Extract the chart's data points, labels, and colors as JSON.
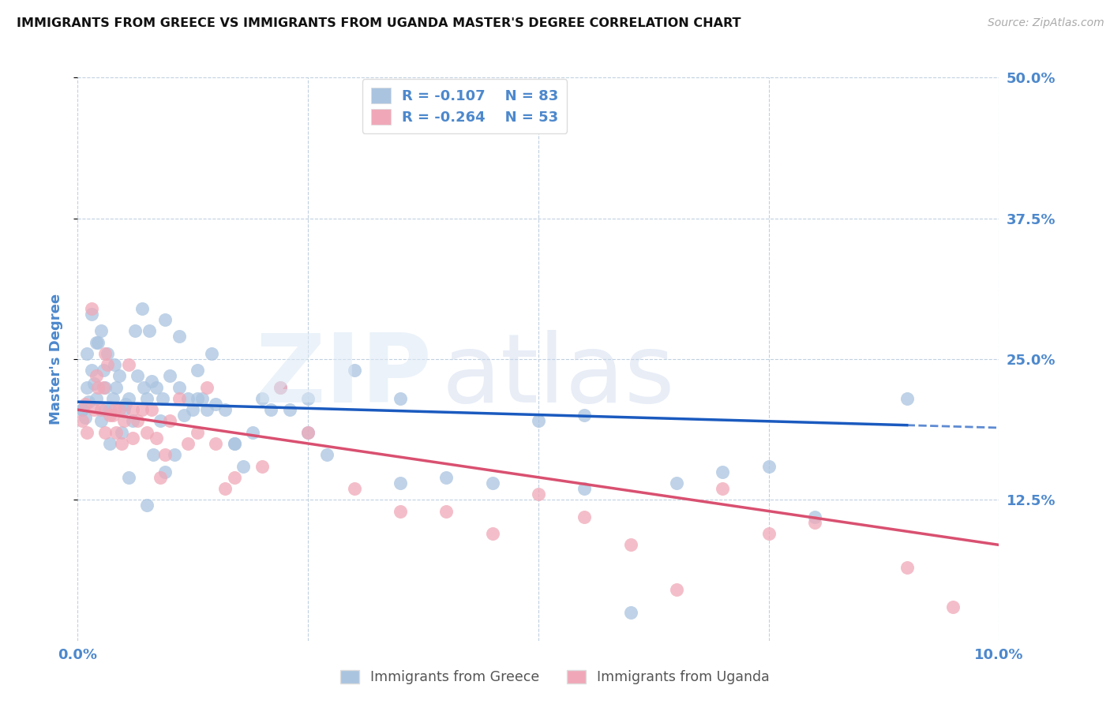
{
  "title": "IMMIGRANTS FROM GREECE VS IMMIGRANTS FROM UGANDA MASTER'S DEGREE CORRELATION CHART",
  "source": "Source: ZipAtlas.com",
  "ylabel": "Master's Degree",
  "xlim": [
    0.0,
    10.0
  ],
  "ylim": [
    0.0,
    50.0
  ],
  "ytick_values": [
    12.5,
    25.0,
    37.5,
    50.0
  ],
  "legend_labels": [
    "Immigrants from Greece",
    "Immigrants from Uganda"
  ],
  "legend_R": [
    "-0.107",
    "-0.264"
  ],
  "legend_N": [
    "83",
    "53"
  ],
  "greece_color": "#aac4e0",
  "uganda_color": "#f0a8b8",
  "greece_line_color": "#1a5abf",
  "uganda_line_color": "#d95070",
  "axis_label_color": "#4d88cc",
  "tick_label_color": "#4d88cc",
  "greece_line_x0": 0.0,
  "greece_line_y0": 21.2,
  "greece_line_x1": 10.0,
  "greece_line_y1": 18.9,
  "greece_solid_end_x": 9.0,
  "uganda_line_x0": 0.0,
  "uganda_line_y0": 20.5,
  "uganda_line_x1": 10.0,
  "uganda_line_y1": 8.5,
  "greece_scatter_x": [
    0.05,
    0.08,
    0.1,
    0.12,
    0.15,
    0.18,
    0.2,
    0.22,
    0.25,
    0.28,
    0.3,
    0.32,
    0.35,
    0.38,
    0.4,
    0.42,
    0.45,
    0.48,
    0.5,
    0.52,
    0.55,
    0.6,
    0.62,
    0.65,
    0.7,
    0.72,
    0.75,
    0.78,
    0.8,
    0.82,
    0.85,
    0.9,
    0.92,
    0.95,
    1.0,
    1.05,
    1.1,
    1.15,
    1.2,
    1.25,
    1.3,
    1.35,
    1.4,
    1.45,
    1.5,
    1.6,
    1.7,
    1.8,
    1.9,
    2.0,
    2.1,
    2.2,
    2.3,
    2.5,
    2.7,
    3.0,
    3.5,
    4.0,
    4.5,
    5.0,
    5.5,
    6.0,
    6.5,
    7.0,
    8.0,
    9.0,
    0.15,
    0.25,
    0.35,
    0.55,
    0.75,
    0.95,
    1.1,
    1.3,
    1.7,
    2.5,
    3.5,
    5.5,
    7.5,
    0.05,
    0.1,
    0.2,
    0.3
  ],
  "greece_scatter_y": [
    20.5,
    19.8,
    22.5,
    21.2,
    24.0,
    22.8,
    21.5,
    26.5,
    27.5,
    24.0,
    22.5,
    25.5,
    20.5,
    21.5,
    24.5,
    22.5,
    23.5,
    18.5,
    20.5,
    21.0,
    21.5,
    19.5,
    27.5,
    23.5,
    29.5,
    22.5,
    21.5,
    27.5,
    23.0,
    16.5,
    22.5,
    19.5,
    21.5,
    28.5,
    23.5,
    16.5,
    22.5,
    20.0,
    21.5,
    20.5,
    21.5,
    21.5,
    20.5,
    25.5,
    21.0,
    20.5,
    17.5,
    15.5,
    18.5,
    21.5,
    20.5,
    22.5,
    20.5,
    21.5,
    16.5,
    24.0,
    21.5,
    14.5,
    14.0,
    19.5,
    13.5,
    2.5,
    14.0,
    15.0,
    11.0,
    21.5,
    29.0,
    19.5,
    17.5,
    14.5,
    12.0,
    15.0,
    27.0,
    24.0,
    17.5,
    18.5,
    14.0,
    20.0,
    15.5,
    20.5,
    25.5,
    26.5,
    20.5
  ],
  "uganda_scatter_x": [
    0.05,
    0.08,
    0.1,
    0.15,
    0.18,
    0.2,
    0.22,
    0.25,
    0.28,
    0.3,
    0.32,
    0.35,
    0.38,
    0.4,
    0.42,
    0.45,
    0.48,
    0.5,
    0.55,
    0.6,
    0.65,
    0.7,
    0.75,
    0.8,
    0.85,
    0.9,
    0.95,
    1.0,
    1.1,
    1.2,
    1.3,
    1.4,
    1.5,
    1.6,
    1.7,
    2.0,
    2.2,
    2.5,
    3.0,
    3.5,
    4.0,
    4.5,
    5.0,
    5.5,
    6.0,
    6.5,
    7.0,
    7.5,
    8.0,
    9.0,
    9.5,
    0.3,
    0.6
  ],
  "uganda_scatter_y": [
    19.5,
    21.0,
    18.5,
    29.5,
    20.5,
    23.5,
    22.5,
    20.5,
    22.5,
    18.5,
    24.5,
    20.0,
    20.0,
    20.5,
    18.5,
    20.5,
    17.5,
    19.5,
    24.5,
    20.5,
    19.5,
    20.5,
    18.5,
    20.5,
    18.0,
    14.5,
    16.5,
    19.5,
    21.5,
    17.5,
    18.5,
    22.5,
    17.5,
    13.5,
    14.5,
    15.5,
    22.5,
    18.5,
    13.5,
    11.5,
    11.5,
    9.5,
    13.0,
    11.0,
    8.5,
    4.5,
    13.5,
    9.5,
    10.5,
    6.5,
    3.0,
    25.5,
    18.0
  ]
}
